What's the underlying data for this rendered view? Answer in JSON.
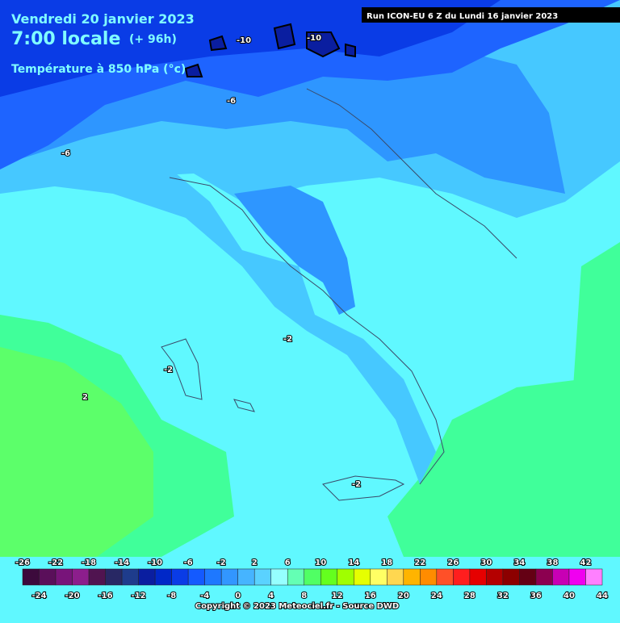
{
  "header": {
    "date": "Vendredi 20 janvier 2023",
    "time": "7:00 locale",
    "lead": "(+ 96h)",
    "parameter": "Température à 850 hPa (°c)",
    "run": "Run ICON-EU 6 Z du Lundi 16 janvier 2023"
  },
  "contour_labels": [
    "-10",
    "-10",
    "-6",
    "-6",
    "-2",
    "-2",
    "2",
    "-2"
  ],
  "colorbar": {
    "top_labels": [
      "-26",
      "-22",
      "-18",
      "-14",
      "-10",
      "-6",
      "-2",
      "2",
      "6",
      "10",
      "14",
      "18",
      "22",
      "26",
      "30",
      "34",
      "38",
      "42"
    ],
    "bottom_labels": [
      "-24",
      "-20",
      "-16",
      "-12",
      "-8",
      "-4",
      "0",
      "4",
      "8",
      "12",
      "16",
      "20",
      "24",
      "28",
      "32",
      "36",
      "40",
      "44"
    ],
    "colors": [
      "#3c0a3c",
      "#5a0f5a",
      "#78147a",
      "#8c1e8c",
      "#501450",
      "#282864",
      "#1e3c8c",
      "#0a1ea0",
      "#0028c8",
      "#0a3ce6",
      "#145aff",
      "#1e78ff",
      "#3296ff",
      "#46b4ff",
      "#5ad2ff",
      "#96ffff",
      "#64ffb4",
      "#50ff64",
      "#64ff1e",
      "#a0ff00",
      "#e6ff00",
      "#ffff64",
      "#ffd750",
      "#ffb400",
      "#ff8c00",
      "#ff5028",
      "#ff1e1e",
      "#e60000",
      "#b40000",
      "#8c0000",
      "#640014",
      "#8c0050",
      "#c800b4",
      "#f000f0",
      "#ff80ff"
    ]
  },
  "footer": {
    "copyright": "Copyright © 2023 Meteociel.fr - Source DWD"
  }
}
